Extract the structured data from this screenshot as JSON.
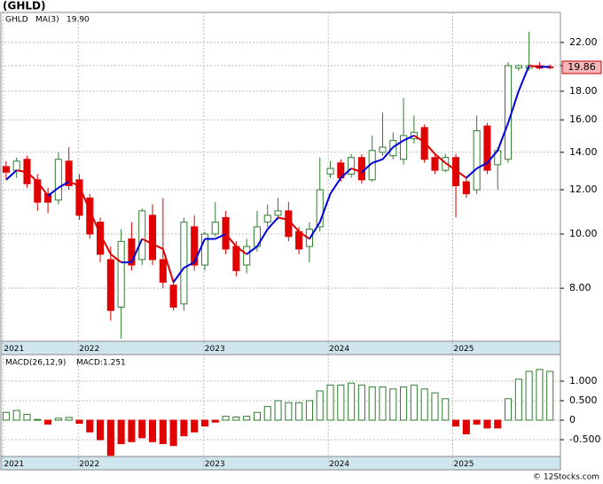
{
  "title": "(GHLD)",
  "watermark": "© 12Stocks.com",
  "chart_data": [
    {
      "type": "candlestick",
      "legend": {
        "symbol": "GHLD",
        "ma_name": "MA(3)",
        "ma_value": "19.90"
      },
      "last_price_label": {
        "value": 19.86,
        "label": "19.86"
      },
      "log_scale": true,
      "grid": true,
      "up_color": "#2e7d2e",
      "down_color": "#e00000",
      "ma_up_color": "#0000dd",
      "ma_down_color": "#e00000",
      "x": [
        0,
        1,
        2,
        3,
        4,
        5,
        6,
        7,
        8,
        9,
        10,
        11,
        12,
        13,
        14,
        15,
        16,
        17,
        18,
        19,
        20,
        21,
        22,
        23,
        24,
        25,
        26,
        27,
        28,
        29,
        30,
        31,
        32,
        33,
        34,
        35,
        36,
        37,
        38,
        39,
        40,
        41,
        42,
        43,
        44,
        45,
        46,
        47,
        48,
        49,
        50,
        51,
        52
      ],
      "open": [
        13.2,
        13.0,
        13.6,
        12.5,
        11.8,
        11.5,
        13.5,
        12.5,
        11.6,
        10.5,
        9.0,
        7.4,
        9.8,
        9.0,
        10.8,
        9.0,
        8.1,
        7.5,
        10.3,
        8.8,
        10.0,
        10.7,
        9.5,
        8.8,
        9.5,
        10.5,
        10.8,
        11.0,
        10.1,
        9.5,
        10.3,
        12.8,
        13.4,
        12.8,
        13.7,
        12.5,
        14.0,
        13.8,
        13.6,
        14.8,
        15.5,
        13.7,
        13.0,
        13.7,
        12.4,
        12.0,
        15.6,
        13.3,
        13.6,
        19.8,
        19.8,
        20.0,
        19.9
      ],
      "high": [
        13.5,
        13.7,
        13.8,
        12.8,
        12.1,
        14.0,
        14.3,
        12.8,
        11.8,
        10.7,
        9.5,
        10.2,
        10.5,
        11.1,
        11.3,
        11.6,
        8.3,
        10.7,
        10.8,
        10.1,
        11.4,
        11.0,
        9.7,
        9.8,
        11.0,
        11.3,
        11.6,
        11.4,
        10.3,
        10.5,
        13.7,
        13.5,
        13.6,
        13.9,
        13.9,
        15.0,
        16.5,
        15.2,
        17.5,
        16.3,
        15.7,
        13.9,
        13.9,
        13.9,
        12.6,
        16.3,
        15.8,
        14.3,
        20.3,
        20.1,
        23.0,
        20.3,
        20.1
      ],
      "low": [
        12.5,
        12.6,
        12.1,
        11.0,
        10.9,
        11.3,
        12.0,
        10.6,
        9.8,
        8.9,
        7.0,
        6.5,
        8.6,
        8.8,
        8.8,
        8.0,
        7.3,
        7.3,
        8.6,
        8.6,
        9.9,
        9.2,
        8.4,
        8.5,
        9.3,
        10.3,
        10.6,
        9.7,
        9.2,
        8.9,
        10.1,
        12.6,
        12.4,
        12.6,
        12.3,
        12.4,
        13.8,
        13.6,
        13.3,
        14.5,
        13.4,
        12.8,
        12.9,
        10.7,
        11.6,
        11.8,
        12.8,
        12.0,
        13.4,
        19.6,
        19.6,
        19.7,
        19.7
      ],
      "close": [
        12.9,
        13.5,
        12.3,
        11.4,
        11.4,
        13.6,
        12.2,
        10.8,
        10.0,
        9.2,
        7.3,
        9.7,
        8.8,
        11.0,
        9.0,
        8.2,
        7.4,
        10.5,
        8.8,
        10.0,
        10.5,
        9.4,
        8.6,
        9.5,
        10.3,
        10.8,
        11.0,
        9.9,
        9.4,
        10.2,
        12.0,
        13.1,
        12.6,
        13.7,
        12.5,
        14.1,
        14.3,
        14.7,
        15.0,
        15.2,
        13.6,
        13.0,
        13.7,
        12.2,
        11.8,
        15.3,
        13.0,
        14.1,
        20.0,
        20.0,
        20.0,
        19.8,
        19.86
      ],
      "ma": [
        12.5,
        13.0,
        12.9,
        12.4,
        11.7,
        12.1,
        12.4,
        12.2,
        11.0,
        10.0,
        9.2,
        8.9,
        8.9,
        9.8,
        9.6,
        9.4,
        8.2,
        8.7,
        8.9,
        9.8,
        9.8,
        10.0,
        9.5,
        9.2,
        9.5,
        10.2,
        10.7,
        10.6,
        10.1,
        9.8,
        10.5,
        11.8,
        12.6,
        13.1,
        12.9,
        13.4,
        13.6,
        14.3,
        14.7,
        15.0,
        14.6,
        13.9,
        13.4,
        13.0,
        12.6,
        13.1,
        13.4,
        14.1,
        15.8,
        18.0,
        20.0,
        19.9,
        19.9
      ],
      "xlim": [
        -0.5,
        53.0
      ],
      "xticks": [
        {
          "value": -0.3,
          "label": "2021"
        },
        {
          "value": 6.9,
          "label": "2022"
        },
        {
          "value": 18.9,
          "label": "2023"
        },
        {
          "value": 30.8,
          "label": "2024"
        },
        {
          "value": 42.7,
          "label": "2025"
        }
      ],
      "ylim": [
        6.43,
        24.9
      ],
      "yticks": [
        {
          "value": 8,
          "label": "8.00"
        },
        {
          "value": 10,
          "label": "10.00"
        },
        {
          "value": 12,
          "label": "12.00"
        },
        {
          "value": 14,
          "label": "14.00"
        },
        {
          "value": 16,
          "label": "16.00"
        },
        {
          "value": 18,
          "label": "18.00"
        },
        {
          "value": 20,
          "label": "20.00"
        },
        {
          "value": 22,
          "label": "22.00"
        }
      ]
    },
    {
      "type": "bar",
      "legend": {
        "name": "MACD(26,12,9)",
        "value": "MACD:1.251"
      },
      "grid": true,
      "up_color": "#2e7d2e",
      "down_color": "#e00000",
      "x": [
        0,
        1,
        2,
        3,
        4,
        5,
        6,
        7,
        8,
        9,
        10,
        11,
        12,
        13,
        14,
        15,
        16,
        17,
        18,
        19,
        20,
        21,
        22,
        23,
        24,
        25,
        26,
        27,
        28,
        29,
        30,
        31,
        32,
        33,
        34,
        35,
        36,
        37,
        38,
        39,
        40,
        41,
        42,
        43,
        44,
        45,
        46,
        47,
        48,
        49,
        50,
        51,
        52
      ],
      "values": [
        0.2,
        0.25,
        0.15,
        0.02,
        -0.1,
        0.05,
        0.07,
        -0.08,
        -0.3,
        -0.5,
        -0.9,
        -0.6,
        -0.55,
        -0.45,
        -0.55,
        -0.6,
        -0.65,
        -0.4,
        -0.3,
        -0.15,
        -0.05,
        0.1,
        0.08,
        0.1,
        0.2,
        0.35,
        0.5,
        0.45,
        0.45,
        0.5,
        0.75,
        0.9,
        0.9,
        0.95,
        0.9,
        0.85,
        0.85,
        0.8,
        0.85,
        0.9,
        0.8,
        0.7,
        0.55,
        -0.15,
        -0.35,
        -0.1,
        -0.2,
        -0.2,
        0.55,
        1.05,
        1.25,
        1.3,
        1.25
      ],
      "xlim": [
        -0.5,
        53.0
      ],
      "xticks": [
        {
          "value": -0.3,
          "label": "2021"
        },
        {
          "value": 6.9,
          "label": "2022"
        },
        {
          "value": 18.9,
          "label": "2023"
        },
        {
          "value": 30.8,
          "label": "2024"
        },
        {
          "value": 42.7,
          "label": "2025"
        }
      ],
      "ylim": [
        -0.93,
        1.68
      ],
      "yticks": [
        {
          "value": -0.5,
          "label": "-0.500"
        },
        {
          "value": 0,
          "label": "0"
        },
        {
          "value": 0.5,
          "label": "0.500"
        },
        {
          "value": 1,
          "label": "1.000"
        }
      ]
    }
  ]
}
